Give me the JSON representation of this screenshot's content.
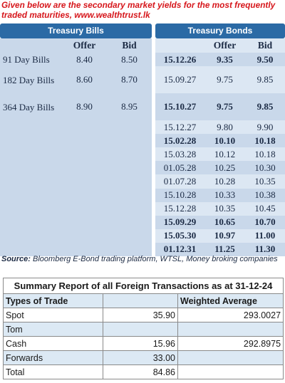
{
  "intro": "Given below are the secondary market yields for the most frequently traded maturities, www.wealthtrust.lk",
  "treasury_bills": {
    "title": "Treasury Bills",
    "offer_label": "Offer",
    "bid_label": "Bid",
    "rows": [
      {
        "name": "91 Day Bills",
        "offer": "8.40",
        "bid": "8.50"
      },
      {
        "name": "182 Day Bills",
        "offer": "8.60",
        "bid": "8.70"
      },
      {
        "name": "364 Day Bills",
        "offer": "8.90",
        "bid": "8.95"
      }
    ]
  },
  "treasury_bonds": {
    "title": "Treasury Bonds",
    "offer_label": "Offer",
    "bid_label": "Bid",
    "rows": [
      {
        "maturity": "15.12.26",
        "offer": "9.35",
        "bid": "9.50",
        "bold": true
      },
      {
        "maturity": "15.09.27",
        "offer": "9.75",
        "bid": "9.85",
        "bold": false
      },
      {
        "maturity": "15.10.27",
        "offer": "9.75",
        "bid": "9.85",
        "bold": true
      },
      {
        "maturity": "15.12.27",
        "offer": "9.80",
        "bid": "9.90",
        "bold": false
      },
      {
        "maturity": "15.02.28",
        "offer": "10.10",
        "bid": "10.18",
        "bold": true
      },
      {
        "maturity": "15.03.28",
        "offer": "10.12",
        "bid": "10.18",
        "bold": false
      },
      {
        "maturity": "01.05.28",
        "offer": "10.25",
        "bid": "10.30",
        "bold": false
      },
      {
        "maturity": "01.07.28",
        "offer": "10.28",
        "bid": "10.35",
        "bold": false
      },
      {
        "maturity": "15.10.28",
        "offer": "10.33",
        "bid": "10.38",
        "bold": false
      },
      {
        "maturity": "15.12.28",
        "offer": "10.35",
        "bid": "10.45",
        "bold": false
      },
      {
        "maturity": "15.09.29",
        "offer": "10.65",
        "bid": "10.70",
        "bold": true
      },
      {
        "maturity": "15.05.30",
        "offer": "10.97",
        "bid": "11.00",
        "bold": true
      },
      {
        "maturity": "01.12.31",
        "offer": "11.25",
        "bid": "11.30",
        "bold": true
      }
    ]
  },
  "source": {
    "label": "Source:",
    "text": " Bloomberg E-Bond trading platform, WTSL, Money broking companies"
  },
  "fx_report": {
    "title": "Summary Report of all Foreign Transactions as at 31-12-24",
    "col_type": "Types of Trade",
    "col_avg": "Weighted Average",
    "rows": [
      {
        "type": "Spot",
        "value": "35.90",
        "avg": "293.0027"
      },
      {
        "type": "Tom",
        "value": "",
        "avg": ""
      },
      {
        "type": "Cash",
        "value": "15.96",
        "avg": "292.8975"
      },
      {
        "type": "Forwards",
        "value": "33.00",
        "avg": ""
      },
      {
        "type": "Total",
        "value": "84.86",
        "avg": ""
      }
    ]
  },
  "colors": {
    "accent_red": "#d6161b",
    "header_blue": "#2b6aa5",
    "row_blue_dark": "#c9d8ea",
    "row_blue_light": "#dce7f3"
  }
}
